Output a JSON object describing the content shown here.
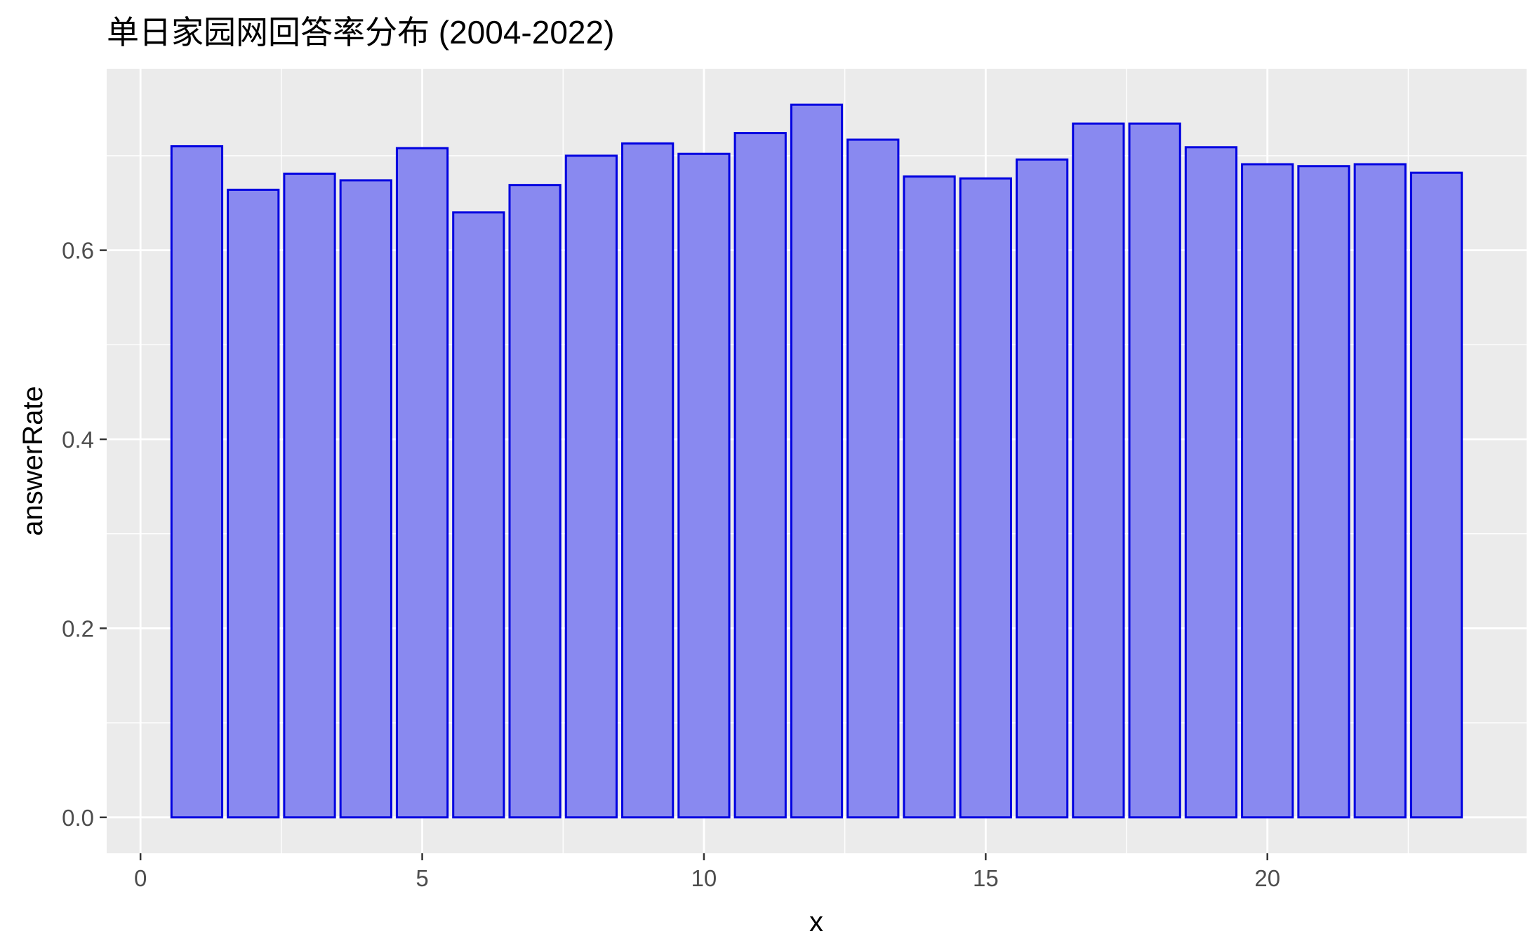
{
  "chart_data": {
    "type": "bar",
    "title": "单日家园网回答率分布 (2004-2022)",
    "xlabel": "x",
    "ylabel": "answerRate",
    "x": [
      1,
      2,
      3,
      4,
      5,
      6,
      7,
      8,
      9,
      10,
      11,
      12,
      13,
      14,
      15,
      16,
      17,
      18,
      19,
      20,
      21,
      22,
      23
    ],
    "values": [
      0.71,
      0.664,
      0.681,
      0.674,
      0.708,
      0.64,
      0.669,
      0.7,
      0.713,
      0.702,
      0.724,
      0.754,
      0.717,
      0.678,
      0.676,
      0.696,
      0.734,
      0.734,
      0.709,
      0.691,
      0.689,
      0.691,
      0.682
    ],
    "xlim": [
      -0.6,
      24.6
    ],
    "ylim": [
      -0.038,
      0.792
    ],
    "x_ticks": [
      0,
      5,
      10,
      15,
      20
    ],
    "x_tick_labels": [
      "0",
      "5",
      "10",
      "15",
      "20"
    ],
    "x_minor_ticks": [
      2.5,
      7.5,
      12.5,
      17.5,
      22.5
    ],
    "y_ticks": [
      0.0,
      0.2,
      0.4,
      0.6
    ],
    "y_tick_labels": [
      "0.0",
      "0.2",
      "0.4",
      "0.6"
    ],
    "y_minor_ticks": [
      0.1,
      0.3,
      0.5,
      0.7
    ],
    "grid": true,
    "legend": "none",
    "bar_fill": "#8989f0",
    "bar_stroke": "#0000e0",
    "panel_background": "#ebebeb",
    "grid_color": "#ffffff",
    "tick_color": "#333333"
  }
}
